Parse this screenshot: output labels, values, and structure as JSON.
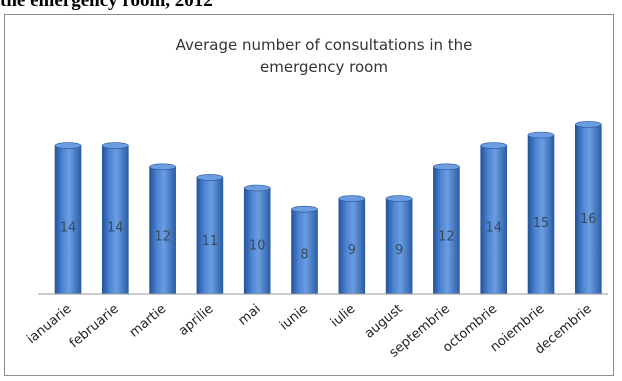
{
  "caption": "the emergency room, 2012",
  "chart_data": {
    "type": "bar",
    "title": "Average number of consultations in the emergency room",
    "title_lines": [
      "Average number of consultations in the",
      "emergency room"
    ],
    "categories": [
      "ianuarie",
      "februarie",
      "martie",
      "aprilie",
      "mai",
      "iunie",
      "iulie",
      "august",
      "septembrie",
      "octombrie",
      "noiembrie",
      "decembrie"
    ],
    "values": [
      14,
      14,
      12,
      11,
      10,
      8,
      9,
      9,
      12,
      14,
      15,
      16
    ],
    "xlabel": "",
    "ylabel": "",
    "ylim": [
      0,
      17
    ],
    "grid": false,
    "legend": "none",
    "bar_color": "#3a73c8",
    "bar_color_dark": "#24549a",
    "bar_color_light": "#6b9de0"
  }
}
